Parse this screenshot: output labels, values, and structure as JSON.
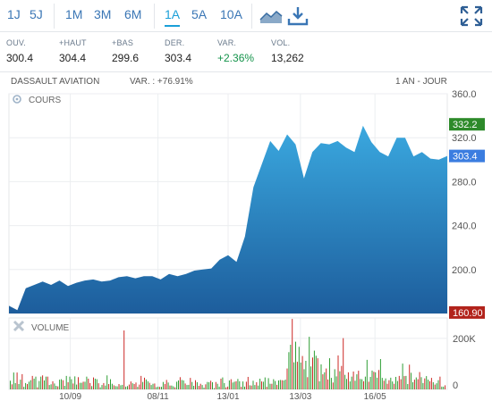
{
  "toolbar": {
    "timeframes": [
      "1J",
      "5J",
      "1M",
      "3M",
      "6M",
      "1A",
      "5A",
      "10A"
    ],
    "active": "1A",
    "icons": [
      "area-chart-icon",
      "download-icon",
      "fullscreen-icon"
    ]
  },
  "quotes": [
    {
      "label": "OUV.",
      "value": "300.4"
    },
    {
      "label": "+HAUT",
      "value": "304.4"
    },
    {
      "label": "+BAS",
      "value": "299.6"
    },
    {
      "label": "DER.",
      "value": "303.4"
    },
    {
      "label": "VAR.",
      "value": "+2.36%"
    },
    {
      "label": "VOL.",
      "value": "13,262"
    }
  ],
  "info": {
    "name": "DASSAULT AVIATION",
    "variation": "VAR. : +76.91%",
    "period": "1 AN - JOUR"
  },
  "colors": {
    "accent": "#1a9fd8",
    "area_top": "#3aa8df",
    "area_bottom": "#1d5d9c",
    "badge_high": "#2d8a2a",
    "badge_last": "#3b7de0",
    "badge_low": "#b2231b",
    "vol_up": "#2f9e35",
    "vol_down": "#cc2a26"
  },
  "chart_data": [
    {
      "type": "area",
      "series_label": "COURS",
      "x": [
        "2021-07-29",
        "2021-08-05",
        "2021-08-12",
        "2021-08-19",
        "2021-08-26",
        "2021-09-02",
        "2021-09-09",
        "2021-09-16",
        "2021-09-23",
        "2021-09-30",
        "2021-10-07",
        "2021-10-14",
        "2021-10-21",
        "2021-10-28",
        "2021-11-04",
        "2021-11-11",
        "2021-11-18",
        "2021-11-25",
        "2021-12-02",
        "2021-12-09",
        "2021-12-16",
        "2021-12-23",
        "2021-12-30",
        "2022-01-06",
        "2022-01-13",
        "2022-01-20",
        "2022-01-27",
        "2022-02-03",
        "2022-02-10",
        "2022-02-17",
        "2022-02-24",
        "2022-03-03",
        "2022-03-10",
        "2022-03-17",
        "2022-03-24",
        "2022-03-31",
        "2022-04-07",
        "2022-04-14",
        "2022-04-21",
        "2022-04-28",
        "2022-05-05",
        "2022-05-12",
        "2022-05-19",
        "2022-05-26",
        "2022-06-02",
        "2022-06-09",
        "2022-06-16",
        "2022-06-23",
        "2022-06-30",
        "2022-07-07",
        "2022-07-14",
        "2022-07-21",
        "2022-07-28"
      ],
      "y": [
        167,
        163,
        183,
        186,
        189,
        186,
        190,
        185,
        188,
        190,
        191,
        189,
        190,
        193,
        194,
        192,
        194,
        194,
        191,
        196,
        194,
        196,
        199,
        200,
        201,
        209,
        213,
        207,
        230,
        275,
        296,
        317,
        308,
        323,
        314,
        283,
        307,
        315,
        314,
        317,
        311,
        307,
        331,
        316,
        307,
        303,
        320,
        320,
        303,
        307,
        301,
        300,
        303.4
      ],
      "ylim": [
        160,
        360
      ],
      "yticks": [
        200,
        240,
        280,
        320,
        360
      ],
      "badges": {
        "high": "332.2",
        "last": "303.4",
        "low": "160.90"
      }
    },
    {
      "type": "bar",
      "series_label": "VOLUME",
      "xticks": [
        "10/09",
        "08/11",
        "13/01",
        "13/03",
        "16/05"
      ],
      "yticks_labels": [
        "0",
        "200K"
      ],
      "yticks_values": [
        0,
        200000
      ],
      "ylim": [
        0,
        280000
      ],
      "values": [
        34000,
        20000,
        66000,
        25000,
        66000,
        21000,
        38000,
        60000,
        10000,
        25000,
        21000,
        30000,
        36000,
        53000,
        42000,
        50000,
        8000,
        33000,
        50000,
        55000,
        35000,
        50000,
        50000,
        17000,
        20000,
        32000,
        23000,
        14000,
        12000,
        38000,
        40000,
        36000,
        14000,
        53000,
        28000,
        50000,
        40000,
        23000,
        51000,
        19000,
        48000,
        26000,
        26000,
        30000,
        30000,
        50000,
        42000,
        25000,
        13000,
        47000,
        42000,
        40000,
        24000,
        8000,
        17000,
        25000,
        15000,
        55000,
        21000,
        40000,
        22000,
        16000,
        13000,
        12000,
        21000,
        16000,
        18000,
        231000,
        11000,
        13000,
        19000,
        31000,
        24000,
        21000,
        27000,
        10000,
        19000,
        53000,
        29000,
        46000,
        39000,
        32000,
        26000,
        17000,
        22000,
        23000,
        9000,
        11000,
        10000,
        10000,
        29000,
        21000,
        37000,
        27000,
        15000,
        15000,
        12000,
        8000,
        30000,
        35000,
        48000,
        37000,
        35000,
        23000,
        17000,
        18000,
        45000,
        29000,
        14000,
        36000,
        28000,
        14000,
        22000,
        17000,
        7000,
        20000,
        29000,
        28000,
        34000,
        28000,
        5000,
        29000,
        22000,
        11000,
        42000,
        47000,
        25000,
        8000,
        11000,
        35000,
        40000,
        27000,
        30000,
        32000,
        41000,
        32000,
        10000,
        31000,
        11000,
        30000,
        49000,
        16000,
        15000,
        34000,
        17000,
        28000,
        15000,
        42000,
        31000,
        30000,
        47000,
        10000,
        44000,
        22000,
        22000,
        40000,
        33000,
        18000,
        35000,
        37000,
        36000,
        35000,
        38000,
        82000,
        146000,
        175000,
        276000,
        106000,
        187000,
        108000,
        167000,
        105000,
        131000,
        79000,
        112000,
        48000,
        206000,
        90000,
        125000,
        152000,
        132000,
        122000,
        32000,
        98000,
        59000,
        67000,
        82000,
        39000,
        122000,
        45000,
        27000,
        79000,
        51000,
        133000,
        71000,
        92000,
        201000,
        57000,
        41000,
        67000,
        31000,
        50000,
        70000,
        34000,
        59000,
        73000,
        41000,
        40000,
        32000,
        50000,
        116000,
        30000,
        49000,
        74000,
        69000,
        67000,
        46000,
        76000,
        119000,
        45000,
        34000,
        43000,
        22000,
        36000,
        46000,
        31000,
        22000,
        49000,
        33000,
        53000,
        40000,
        101000,
        52000,
        53000,
        21000,
        97000,
        65000,
        28000,
        38000,
        47000,
        40000,
        68000,
        48000,
        25000,
        43000,
        52000,
        38000,
        32000,
        45000,
        28000,
        19000,
        24000,
        36000,
        50000,
        11000,
        11000,
        16000
      ],
      "colors_down_idx": [
        34,
        47,
        67,
        71,
        74,
        77,
        82,
        88,
        92,
        111,
        128,
        140,
        160,
        172,
        186,
        195,
        205,
        222,
        230,
        240,
        248
      ]
    }
  ]
}
